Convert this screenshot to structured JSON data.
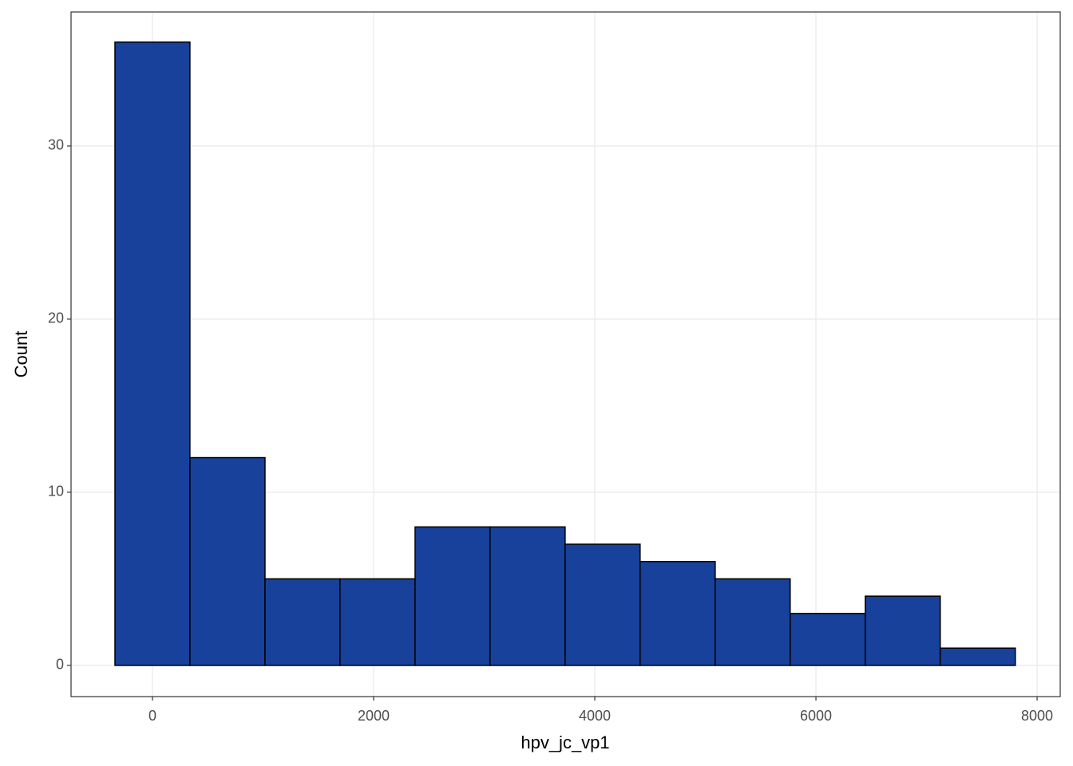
{
  "chart_data": {
    "type": "histogram",
    "x_label": "hpv_jc_vp1",
    "y_label": "Count",
    "bins": [
      -339,
      339,
      1018,
      1696,
      2375,
      3053,
      3732,
      4410,
      5089,
      5767,
      6446,
      7124,
      7803
    ],
    "values": [
      36,
      12,
      5,
      5,
      8,
      8,
      7,
      6,
      5,
      3,
      4,
      1
    ],
    "color": "#17419a",
    "edge_color": "#000000",
    "xlim": [
      -736,
      8209
    ],
    "ylim": [
      -1.8,
      37.74
    ],
    "xticks": [
      0,
      2000,
      4000,
      6000,
      8000
    ],
    "yticks": [
      0,
      10,
      20,
      30
    ],
    "grid": true
  }
}
